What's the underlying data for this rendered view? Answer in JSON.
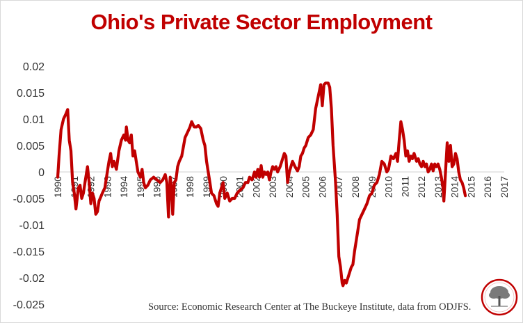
{
  "title": "Ohio's Private Sector Employment",
  "source": "Source: Economic Research Center at The Buckeye Institute, data from ODJFS.",
  "logo": {
    "icon": "buckeye-tree-seal",
    "ring_color": "#c00000"
  },
  "colors": {
    "line": "#c00000",
    "title": "#c00000",
    "axis": "#d0d0d0",
    "tick_text": "#333333"
  },
  "chart_data": {
    "type": "line",
    "title": "Ohio's Private Sector Employment",
    "xlabel": "",
    "ylabel": "",
    "ylim": [
      -0.025,
      0.02
    ],
    "yticks": [
      0.02,
      0.015,
      0.01,
      0.005,
      0,
      -0.005,
      -0.01,
      -0.015,
      -0.02,
      -0.025
    ],
    "ytick_labels": [
      "0.02",
      "0.015",
      "0.01",
      "0.005",
      "0",
      "-0.005",
      "-0.01",
      "-0.015",
      "-0.02",
      "-0.025"
    ],
    "xticks": [
      "1990",
      "1991",
      "1992",
      "1993",
      "1994",
      "1995",
      "1996",
      "1997",
      "1998",
      "1999",
      "2000",
      "2001",
      "2002",
      "2003",
      "2004",
      "2005",
      "2006",
      "2007",
      "2008",
      "2009",
      "2010",
      "2011",
      "2012",
      "2013",
      "2014",
      "2015",
      "2016",
      "2017"
    ],
    "grid": false,
    "legend": "none",
    "series": [
      {
        "values": [
          [
            1990.0,
            -0.001
          ],
          [
            1990.08,
            0.003
          ],
          [
            1990.2,
            0.008
          ],
          [
            1990.35,
            0.01
          ],
          [
            1990.5,
            0.011
          ],
          [
            1990.6,
            0.0118
          ],
          [
            1990.7,
            0.006
          ],
          [
            1990.8,
            0.004
          ],
          [
            1990.9,
            -0.002
          ],
          [
            1991.0,
            -0.004
          ],
          [
            1991.1,
            -0.007
          ],
          [
            1991.25,
            -0.003
          ],
          [
            1991.35,
            -0.0025
          ],
          [
            1991.45,
            -0.005
          ],
          [
            1991.55,
            -0.004
          ],
          [
            1991.65,
            -0.002
          ],
          [
            1991.8,
            0.001
          ],
          [
            1991.9,
            -0.002
          ],
          [
            1992.0,
            -0.006
          ],
          [
            1992.1,
            -0.004
          ],
          [
            1992.2,
            -0.005
          ],
          [
            1992.3,
            -0.008
          ],
          [
            1992.4,
            -0.0075
          ],
          [
            1992.5,
            -0.0055
          ],
          [
            1992.7,
            -0.004
          ],
          [
            1992.85,
            -0.003
          ],
          [
            1993.0,
            0.0
          ],
          [
            1993.1,
            0.002
          ],
          [
            1993.2,
            0.0035
          ],
          [
            1993.3,
            0.001
          ],
          [
            1993.4,
            0.002
          ],
          [
            1993.55,
            0.0005
          ],
          [
            1993.7,
            0.004
          ],
          [
            1993.85,
            0.006
          ],
          [
            1994.0,
            0.007
          ],
          [
            1994.1,
            0.006
          ],
          [
            1994.15,
            0.0085
          ],
          [
            1994.25,
            0.006
          ],
          [
            1994.35,
            0.0055
          ],
          [
            1994.45,
            0.007
          ],
          [
            1994.55,
            0.003
          ],
          [
            1994.65,
            0.004
          ],
          [
            1994.75,
            0.002
          ],
          [
            1994.85,
            0.0
          ],
          [
            1995.0,
            -0.001
          ],
          [
            1995.1,
            0.0005
          ],
          [
            1995.2,
            -0.002
          ],
          [
            1995.3,
            -0.003
          ],
          [
            1995.45,
            -0.0025
          ],
          [
            1995.6,
            -0.0015
          ],
          [
            1995.8,
            -0.001
          ],
          [
            1996.0,
            -0.0015
          ],
          [
            1996.2,
            -0.002
          ],
          [
            1996.35,
            -0.0015
          ],
          [
            1996.5,
            -0.0005
          ],
          [
            1996.6,
            -0.002
          ],
          [
            1996.7,
            -0.0085
          ],
          [
            1996.8,
            -0.001
          ],
          [
            1996.9,
            -0.0035
          ],
          [
            1996.95,
            -0.008
          ],
          [
            1997.05,
            -0.002
          ],
          [
            1997.15,
            -0.0015
          ],
          [
            1997.25,
            0.001
          ],
          [
            1997.35,
            0.002
          ],
          [
            1997.5,
            0.003
          ],
          [
            1997.7,
            0.0065
          ],
          [
            1997.85,
            0.0075
          ],
          [
            1998.0,
            0.0085
          ],
          [
            1998.1,
            0.0095
          ],
          [
            1998.25,
            0.0085
          ],
          [
            1998.4,
            0.0085
          ],
          [
            1998.5,
            0.0088
          ],
          [
            1998.65,
            0.0082
          ],
          [
            1998.8,
            0.006
          ],
          [
            1998.9,
            0.005
          ],
          [
            1999.0,
            0.002
          ],
          [
            1999.1,
            0.0
          ],
          [
            1999.2,
            -0.002
          ],
          [
            1999.3,
            -0.004
          ],
          [
            1999.45,
            -0.0045
          ],
          [
            1999.6,
            -0.006
          ],
          [
            1999.7,
            -0.0065
          ],
          [
            1999.8,
            -0.004
          ],
          [
            1999.9,
            -0.003
          ],
          [
            2000.0,
            -0.002
          ],
          [
            2000.1,
            -0.005
          ],
          [
            2000.25,
            -0.004
          ],
          [
            2000.4,
            -0.0055
          ],
          [
            2000.55,
            -0.005
          ],
          [
            2000.7,
            -0.005
          ],
          [
            2000.85,
            -0.004
          ],
          [
            2001.0,
            -0.0035
          ],
          [
            2001.2,
            -0.003
          ],
          [
            2001.35,
            -0.002
          ],
          [
            2001.5,
            -0.002
          ],
          [
            2001.6,
            -0.001
          ],
          [
            2001.75,
            -0.0015
          ],
          [
            2001.9,
            0.0
          ],
          [
            2002.0,
            -0.001
          ],
          [
            2002.1,
            0.0005
          ],
          [
            2002.2,
            -0.001
          ],
          [
            2002.3,
            0.0012
          ],
          [
            2002.4,
            -0.001
          ],
          [
            2002.5,
            0.0
          ],
          [
            2002.6,
            -0.0005
          ],
          [
            2002.7,
            0.0
          ],
          [
            2002.8,
            -0.0015
          ],
          [
            2002.9,
            0.0
          ],
          [
            2003.0,
            0.001
          ],
          [
            2003.1,
            0.0005
          ],
          [
            2003.2,
            0.001
          ],
          [
            2003.3,
            0.0
          ],
          [
            2003.45,
            0.001
          ],
          [
            2003.55,
            0.002
          ],
          [
            2003.7,
            0.0035
          ],
          [
            2003.8,
            0.003
          ],
          [
            2003.9,
            -0.002
          ],
          [
            2004.0,
            0.0
          ],
          [
            2004.1,
            0.001
          ],
          [
            2004.2,
            0.002
          ],
          [
            2004.35,
            0.001
          ],
          [
            2004.5,
            0.0002
          ],
          [
            2004.6,
            0.001
          ],
          [
            2004.7,
            0.003
          ],
          [
            2004.8,
            0.0035
          ],
          [
            2004.9,
            0.0045
          ],
          [
            2005.0,
            0.005
          ],
          [
            2005.15,
            0.0065
          ],
          [
            2005.3,
            0.007
          ],
          [
            2005.45,
            0.008
          ],
          [
            2005.6,
            0.012
          ],
          [
            2005.8,
            0.015
          ],
          [
            2005.9,
            0.0165
          ],
          [
            2006.0,
            0.0125
          ],
          [
            2006.1,
            0.0165
          ],
          [
            2006.2,
            0.0168
          ],
          [
            2006.35,
            0.0168
          ],
          [
            2006.45,
            0.016
          ],
          [
            2006.55,
            0.012
          ],
          [
            2006.65,
            0.005
          ],
          [
            2006.8,
            -0.002
          ],
          [
            2006.9,
            -0.008
          ],
          [
            2007.0,
            -0.016
          ],
          [
            2007.1,
            -0.018
          ],
          [
            2007.2,
            -0.021
          ],
          [
            2007.25,
            -0.0215
          ],
          [
            2007.35,
            -0.0205
          ],
          [
            2007.45,
            -0.021
          ],
          [
            2007.55,
            -0.02
          ],
          [
            2007.65,
            -0.019
          ],
          [
            2007.75,
            -0.018
          ],
          [
            2007.85,
            -0.0175
          ],
          [
            2007.95,
            -0.015
          ],
          [
            2008.05,
            -0.013
          ],
          [
            2008.15,
            -0.011
          ],
          [
            2008.25,
            -0.009
          ],
          [
            2008.4,
            -0.008
          ],
          [
            2008.55,
            -0.007
          ],
          [
            2008.7,
            -0.006
          ],
          [
            2008.85,
            -0.0045
          ],
          [
            2009.0,
            -0.004
          ],
          [
            2009.15,
            -0.0025
          ],
          [
            2009.3,
            -0.002
          ],
          [
            2009.45,
            -0.0005
          ],
          [
            2009.6,
            0.002
          ],
          [
            2009.75,
            0.0015
          ],
          [
            2009.9,
            0.0
          ],
          [
            2010.0,
            0.0005
          ],
          [
            2010.15,
            0.003
          ],
          [
            2010.3,
            0.0025
          ],
          [
            2010.45,
            0.0035
          ],
          [
            2010.55,
            0.002
          ],
          [
            2010.65,
            0.006
          ],
          [
            2010.75,
            0.0095
          ],
          [
            2010.85,
            0.008
          ],
          [
            2010.95,
            0.006
          ],
          [
            2011.05,
            0.003
          ],
          [
            2011.15,
            0.004
          ],
          [
            2011.25,
            0.002
          ],
          [
            2011.35,
            0.003
          ],
          [
            2011.45,
            0.0025
          ],
          [
            2011.55,
            0.0035
          ],
          [
            2011.7,
            0.002
          ],
          [
            2011.8,
            0.0025
          ],
          [
            2011.9,
            0.0015
          ],
          [
            2012.0,
            0.001
          ],
          [
            2012.1,
            0.002
          ],
          [
            2012.2,
            0.001
          ],
          [
            2012.3,
            0.0015
          ],
          [
            2012.4,
            0.0
          ],
          [
            2012.5,
            0.0005
          ],
          [
            2012.6,
            0.0015
          ],
          [
            2012.7,
            0.0002
          ],
          [
            2012.8,
            0.0015
          ],
          [
            2012.9,
            0.001
          ],
          [
            2013.0,
            0.0015
          ],
          [
            2013.1,
            0.0005
          ],
          [
            2013.2,
            -0.001
          ],
          [
            2013.3,
            -0.003
          ],
          [
            2013.35,
            -0.0055
          ],
          [
            2013.45,
            0.0
          ],
          [
            2013.55,
            0.0055
          ],
          [
            2013.65,
            0.002
          ],
          [
            2013.75,
            0.005
          ],
          [
            2013.85,
            0.001
          ],
          [
            2013.95,
            0.0015
          ],
          [
            2014.05,
            0.0035
          ],
          [
            2014.15,
            0.0025
          ],
          [
            2014.25,
            0.0
          ],
          [
            2014.35,
            -0.0015
          ],
          [
            2014.45,
            -0.002
          ],
          [
            2014.55,
            -0.003
          ],
          [
            2014.65,
            -0.0045
          ]
        ]
      }
    ]
  }
}
